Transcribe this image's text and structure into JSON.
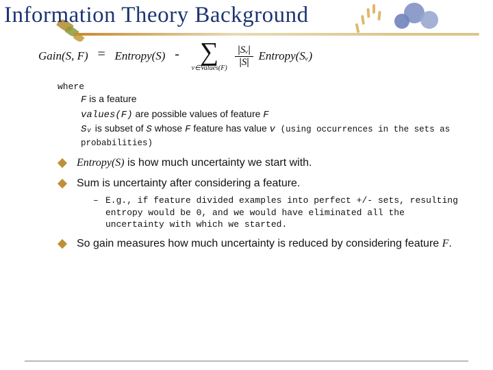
{
  "title": "Information Theory Background",
  "colors": {
    "title": "#1d3570",
    "bullet": "#c09038",
    "accent_bar_gradient": [
      "#c78a2e",
      "#e8d9b5",
      "#d9c78a"
    ],
    "flower_petals": [
      "#8292c4",
      "#9aa7cf",
      "#6f83bd"
    ],
    "leaves": [
      "#b38b2f",
      "#8a9a3a",
      "#c49a3b"
    ],
    "wheat": "#d4a23d",
    "background": "#ffffff",
    "rule": "#b9b9b9"
  },
  "typography": {
    "title_font": "Georgia",
    "title_size_pt": 25,
    "body_font": "Verdana",
    "body_size_pt": 12,
    "mono_font": "Courier New"
  },
  "formula": {
    "lhs": "Gain(S, F)",
    "eq": "=",
    "rhs_first": "Entropy(S)",
    "minus": "-",
    "sum_under": "v∈Values(F)",
    "frac_top": "Sᵥ",
    "frac_bot": "S",
    "rhs_tail": "Entropy(Sᵥ)"
  },
  "where_label": "where",
  "definitions": {
    "d1_term": "F",
    "d1_text": " is a feature",
    "d2_term": "values(F)",
    "d2_text_a": " are possible values of feature ",
    "d2_text_b": "F",
    "d3_term": "Sᵥ",
    "d3_text_a": " is subset of ",
    "d3_text_b": "S",
    "d3_text_c": " whose ",
    "d3_text_d": "F",
    "d3_text_e": " feature has value ",
    "d3_text_f": "v",
    "d3_paren": " (using occurrences in the sets as probabilities)"
  },
  "bullets": {
    "b1_term": "Entropy(S)",
    "b1_text": " is how much uncertainty we start with.",
    "b2_text": "Sum is uncertainty after considering a feature.",
    "b2_sub": "E.g., if feature divided examples into perfect +/- sets, resulting entropy would be 0, and we would have eliminated all the uncertainty with which we started.",
    "b3_text_a": "So gain measures how much uncertainty is reduced by considering feature ",
    "b3_text_b": "F",
    "b3_text_c": "."
  }
}
